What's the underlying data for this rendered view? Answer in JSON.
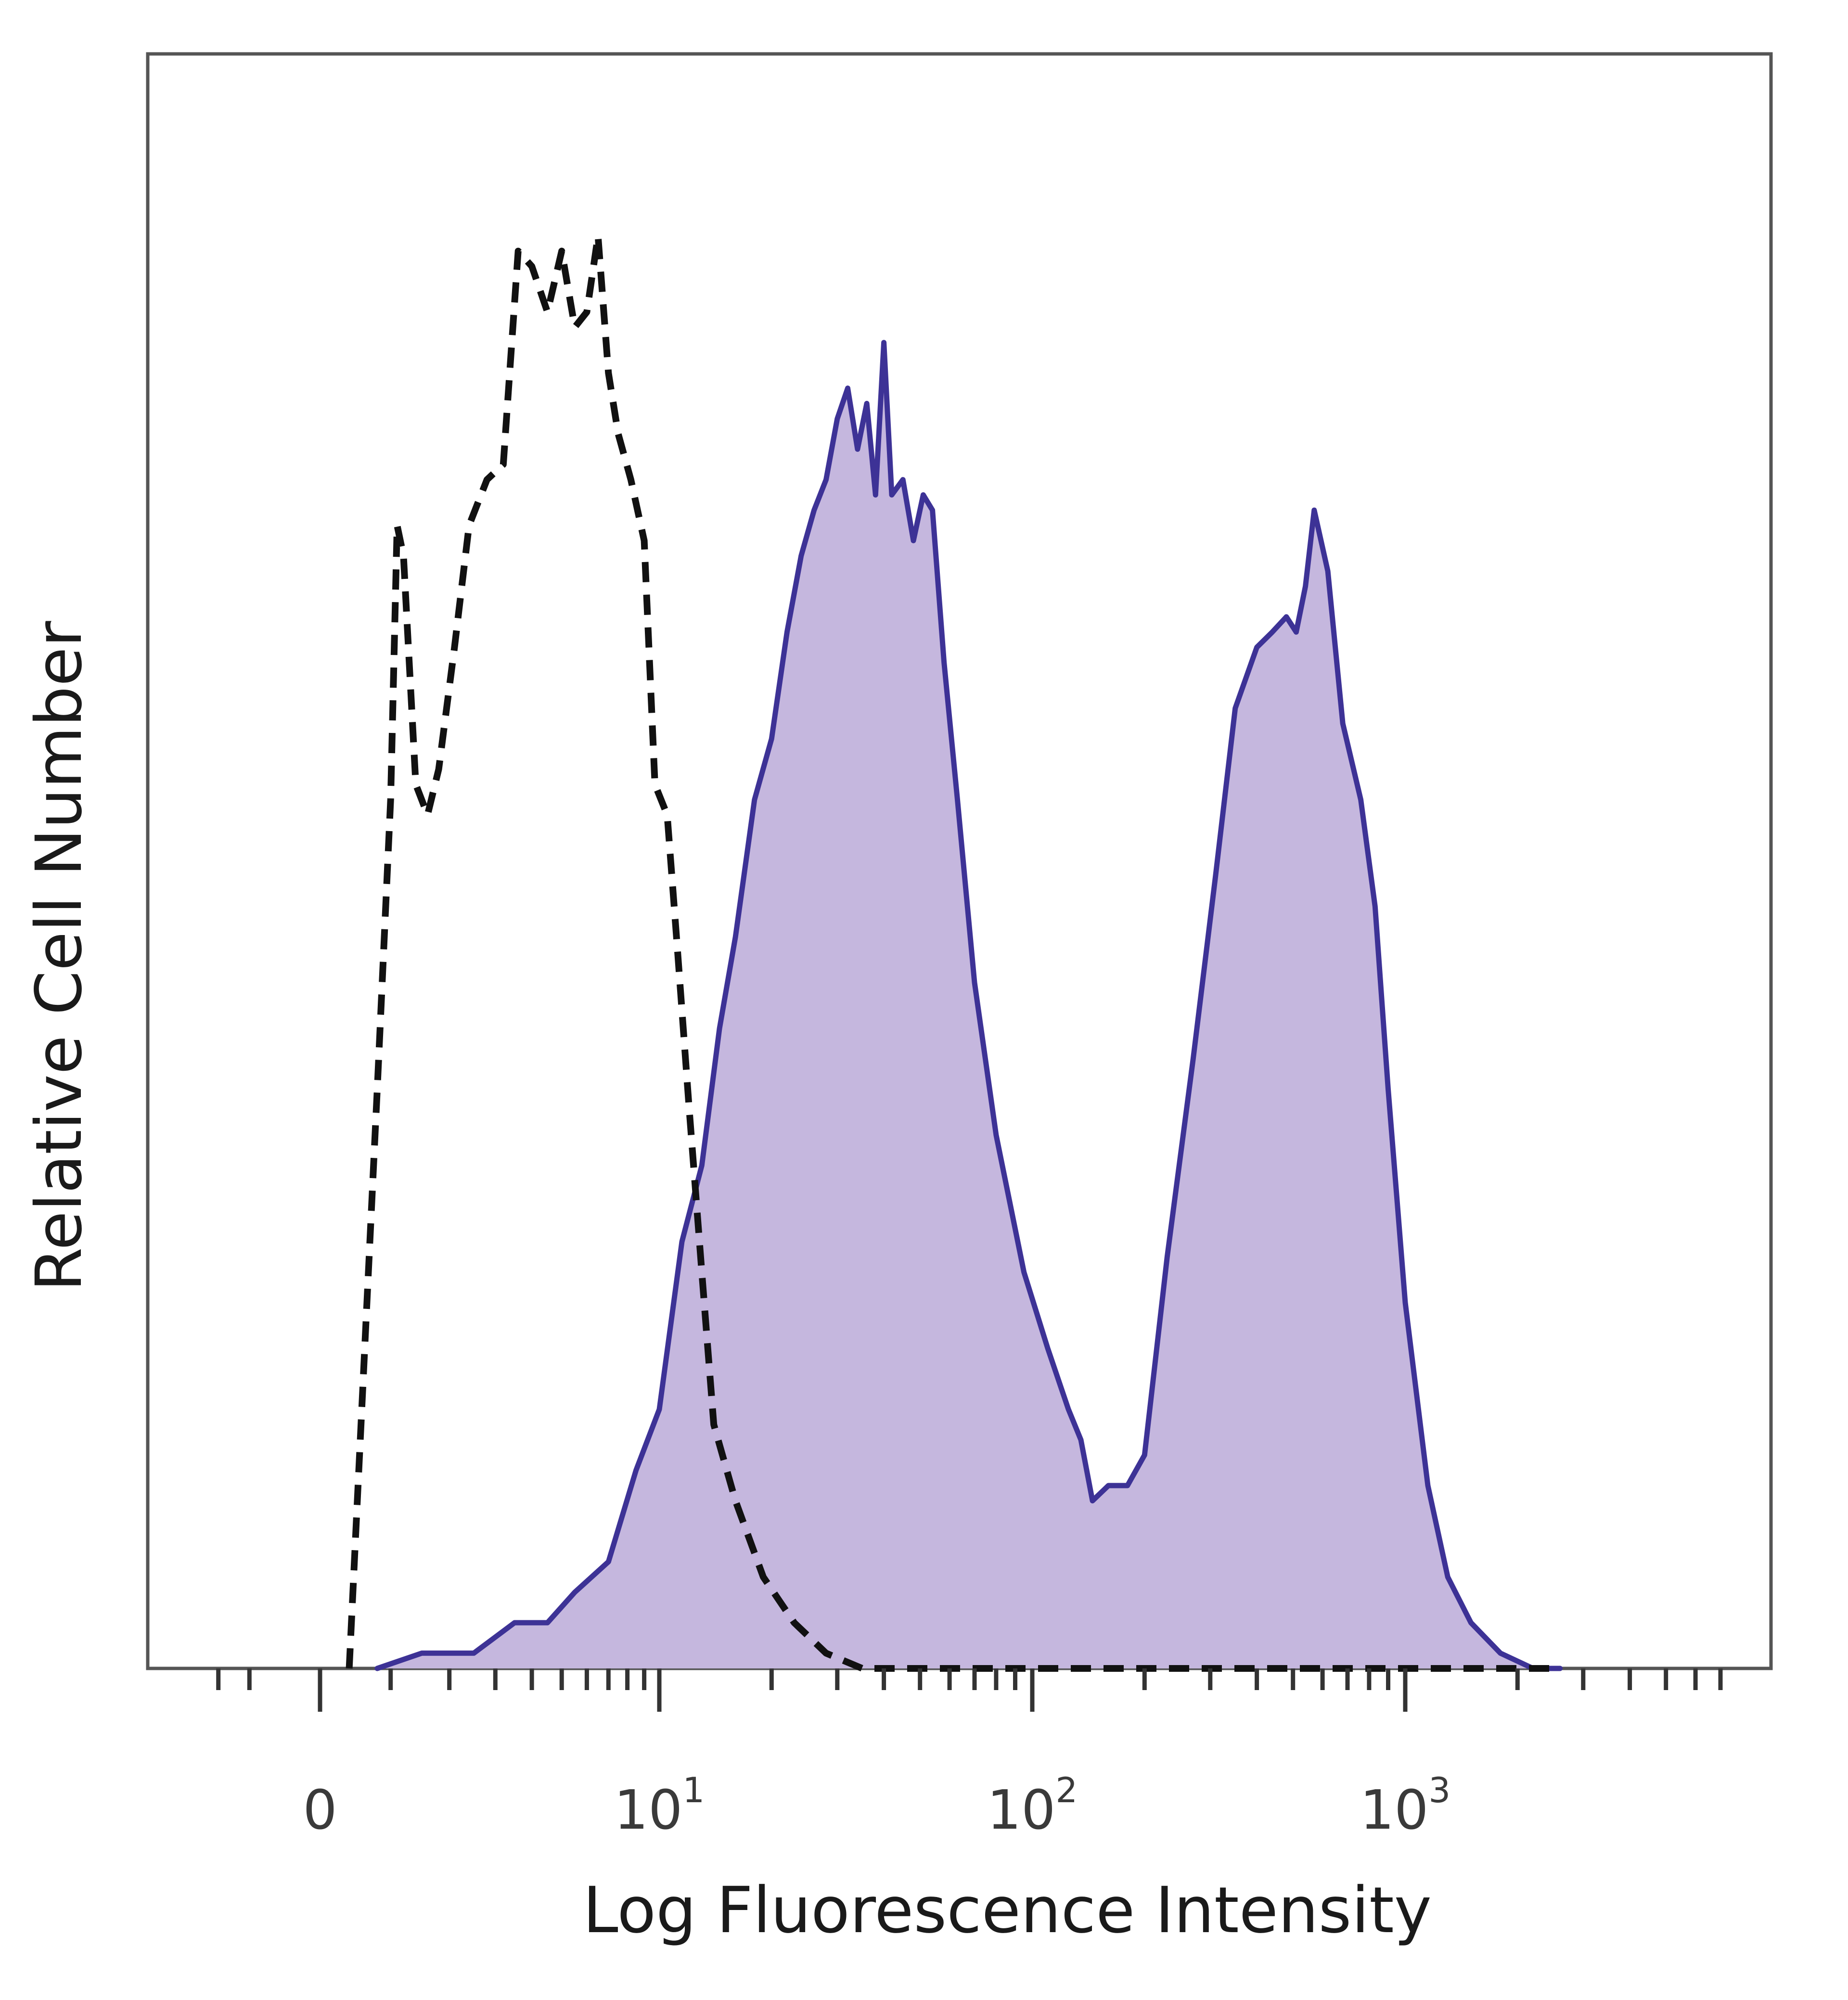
{
  "chart_data": {
    "type": "area",
    "xlabel": "Log Fluorescence Intensity",
    "ylabel": "Relative Cell Number",
    "x_scale": "biexponential",
    "xlim": [
      -2,
      8000
    ],
    "ylim": [
      0,
      1.0
    ],
    "grid": false,
    "x_ticks": [
      {
        "value": 0,
        "base": "0",
        "exp": ""
      },
      {
        "value": 10,
        "base": "10",
        "exp": "1"
      },
      {
        "value": 100,
        "base": "10",
        "exp": "2"
      },
      {
        "value": 1000,
        "base": "10",
        "exp": "3"
      }
    ],
    "series": [
      {
        "style": "filled",
        "color": "#3d3296",
        "fill": "#c5b7de",
        "points": [
          [
            0.8,
            0.0
          ],
          [
            1.5,
            0.01
          ],
          [
            2.5,
            0.01
          ],
          [
            3.5,
            0.03
          ],
          [
            4.5,
            0.03
          ],
          [
            5.5,
            0.05
          ],
          [
            7,
            0.07
          ],
          [
            8.5,
            0.13
          ],
          [
            10,
            0.17
          ],
          [
            11.5,
            0.28
          ],
          [
            13,
            0.33
          ],
          [
            14.5,
            0.42
          ],
          [
            16,
            0.48
          ],
          [
            18,
            0.57
          ],
          [
            20,
            0.61
          ],
          [
            22,
            0.68
          ],
          [
            24,
            0.73
          ],
          [
            26,
            0.76
          ],
          [
            28,
            0.78
          ],
          [
            30,
            0.82
          ],
          [
            32,
            0.84
          ],
          [
            34,
            0.8
          ],
          [
            36,
            0.83
          ],
          [
            38,
            0.77
          ],
          [
            40,
            0.87
          ],
          [
            42,
            0.77
          ],
          [
            45,
            0.78
          ],
          [
            48,
            0.74
          ],
          [
            51,
            0.77
          ],
          [
            54,
            0.76
          ],
          [
            58,
            0.66
          ],
          [
            63,
            0.57
          ],
          [
            70,
            0.45
          ],
          [
            80,
            0.35
          ],
          [
            95,
            0.26
          ],
          [
            110,
            0.21
          ],
          [
            125,
            0.17
          ],
          [
            135,
            0.15
          ],
          [
            145,
            0.11
          ],
          [
            160,
            0.12
          ],
          [
            180,
            0.12
          ],
          [
            200,
            0.14
          ],
          [
            230,
            0.27
          ],
          [
            270,
            0.4
          ],
          [
            310,
            0.52
          ],
          [
            350,
            0.63
          ],
          [
            400,
            0.67
          ],
          [
            440,
            0.68
          ],
          [
            480,
            0.69
          ],
          [
            510,
            0.68
          ],
          [
            540,
            0.71
          ],
          [
            570,
            0.76
          ],
          [
            620,
            0.72
          ],
          [
            680,
            0.62
          ],
          [
            760,
            0.57
          ],
          [
            830,
            0.5
          ],
          [
            900,
            0.38
          ],
          [
            1000,
            0.24
          ],
          [
            1150,
            0.12
          ],
          [
            1300,
            0.06
          ],
          [
            1500,
            0.03
          ],
          [
            1800,
            0.01
          ],
          [
            2200,
            0.0
          ],
          [
            2600,
            0.0
          ]
        ]
      },
      {
        "style": "dashed",
        "color": "#111111",
        "points": [
          [
            0.4,
            0.0
          ],
          [
            0.8,
            0.38
          ],
          [
            1.0,
            0.57
          ],
          [
            1.1,
            0.75
          ],
          [
            1.2,
            0.73
          ],
          [
            1.4,
            0.58
          ],
          [
            1.6,
            0.56
          ],
          [
            1.8,
            0.59
          ],
          [
            2.1,
            0.67
          ],
          [
            2.4,
            0.75
          ],
          [
            2.8,
            0.78
          ],
          [
            3.2,
            0.79
          ],
          [
            3.6,
            0.93
          ],
          [
            4.0,
            0.92
          ],
          [
            4.5,
            0.89
          ],
          [
            5.0,
            0.93
          ],
          [
            5.5,
            0.88
          ],
          [
            6.0,
            0.89
          ],
          [
            6.5,
            0.94
          ],
          [
            7.0,
            0.85
          ],
          [
            7.5,
            0.81
          ],
          [
            8.2,
            0.78
          ],
          [
            9.0,
            0.74
          ],
          [
            9.7,
            0.58
          ],
          [
            10.5,
            0.56
          ],
          [
            11.2,
            0.47
          ],
          [
            12.0,
            0.37
          ],
          [
            13.0,
            0.26
          ],
          [
            14.0,
            0.16
          ],
          [
            16.0,
            0.11
          ],
          [
            19.0,
            0.06
          ],
          [
            23.0,
            0.03
          ],
          [
            28.0,
            0.01
          ],
          [
            35.0,
            0.0
          ],
          [
            80.0,
            0.0
          ],
          [
            500.0,
            0.0
          ],
          [
            2600,
            0.0
          ]
        ]
      }
    ]
  }
}
